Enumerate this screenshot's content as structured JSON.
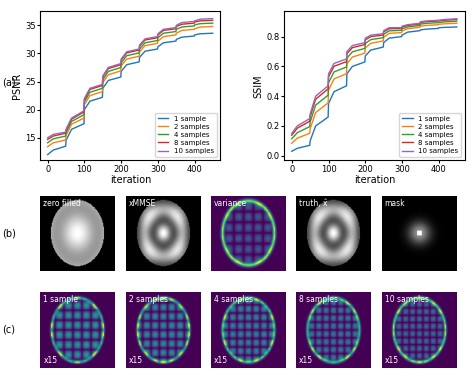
{
  "chart_data": [
    {
      "type": "line",
      "x_label": "iteration",
      "y_label": "PSNR",
      "x": [
        0,
        15,
        49,
        50,
        65,
        99,
        100,
        115,
        149,
        150,
        165,
        199,
        200,
        215,
        249,
        250,
        265,
        299,
        300,
        315,
        349,
        350,
        365,
        399,
        400,
        415,
        449
      ],
      "xlim": [
        -20,
        470
      ],
      "xticks": [
        0,
        100,
        200,
        300,
        400
      ],
      "ylim": [
        11,
        37.5
      ],
      "yticks": [
        15,
        20,
        25,
        30,
        35
      ],
      "legend": "lower right",
      "series": [
        {
          "name": "1 sample",
          "color": "#1f77b4",
          "values": [
            12.0,
            12.8,
            13.5,
            14.5,
            16.5,
            17.5,
            20.0,
            21.5,
            22.2,
            23.8,
            25.2,
            25.8,
            26.8,
            28.0,
            28.5,
            29.3,
            30.4,
            30.8,
            31.2,
            31.9,
            32.2,
            32.5,
            32.9,
            33.1,
            33.3,
            33.5,
            33.6
          ]
        },
        {
          "name": "2 samples",
          "color": "#ff7f0e",
          "values": [
            13.4,
            14.1,
            14.6,
            15.4,
            17.4,
            18.5,
            20.9,
            22.5,
            23.2,
            24.8,
            26.2,
            26.9,
            27.8,
            29.0,
            29.5,
            30.3,
            31.4,
            31.8,
            32.2,
            33.0,
            33.3,
            33.6,
            34.1,
            34.3,
            34.4,
            34.7,
            34.8
          ]
        },
        {
          "name": "4 samples",
          "color": "#2ca02c",
          "values": [
            14.1,
            14.8,
            15.3,
            15.9,
            17.9,
            19.1,
            21.4,
            23.1,
            23.8,
            25.3,
            26.8,
            27.5,
            28.3,
            29.6,
            30.1,
            30.8,
            31.9,
            32.3,
            32.8,
            33.6,
            33.9,
            34.3,
            34.7,
            34.9,
            35.1,
            35.3,
            35.4
          ]
        },
        {
          "name": "8 samples",
          "color": "#d62728",
          "values": [
            14.7,
            15.3,
            15.8,
            16.3,
            18.3,
            19.6,
            21.8,
            23.6,
            24.3,
            25.8,
            27.3,
            28.0,
            28.8,
            30.1,
            30.6,
            31.3,
            32.4,
            32.8,
            33.3,
            34.1,
            34.4,
            34.8,
            35.2,
            35.4,
            35.6,
            35.8,
            35.9
          ]
        },
        {
          "name": "10 samples",
          "color": "#9467bd",
          "values": [
            15.0,
            15.6,
            16.0,
            16.5,
            18.5,
            19.8,
            22.0,
            23.8,
            24.5,
            26.0,
            27.5,
            28.2,
            29.0,
            30.3,
            30.8,
            31.5,
            32.6,
            33.0,
            33.5,
            34.3,
            34.6,
            35.0,
            35.5,
            35.7,
            35.8,
            36.1,
            36.2
          ]
        }
      ]
    },
    {
      "type": "line",
      "x_label": "iteration",
      "y_label": "SSIM",
      "x": [
        0,
        15,
        49,
        50,
        65,
        99,
        100,
        115,
        149,
        150,
        165,
        199,
        200,
        215,
        249,
        250,
        265,
        299,
        300,
        315,
        349,
        350,
        365,
        399,
        400,
        415,
        449
      ],
      "xlim": [
        -20,
        470
      ],
      "xticks": [
        0,
        100,
        200,
        300,
        400
      ],
      "ylim": [
        -0.03,
        0.97
      ],
      "yticks": [
        {
          "value": 0,
          "label": "0.0"
        },
        0.2,
        0.4,
        0.6,
        0.8
      ],
      "legend": "lower right",
      "series": [
        {
          "name": "1 sample",
          "color": "#1f77b4",
          "values": [
            0.03,
            0.05,
            0.07,
            0.1,
            0.2,
            0.26,
            0.35,
            0.43,
            0.47,
            0.55,
            0.6,
            0.63,
            0.67,
            0.71,
            0.73,
            0.76,
            0.79,
            0.8,
            0.81,
            0.83,
            0.84,
            0.845,
            0.85,
            0.855,
            0.86,
            0.862,
            0.865
          ]
        },
        {
          "name": "2 samples",
          "color": "#ff7f0e",
          "values": [
            0.084,
            0.118,
            0.151,
            0.181,
            0.29,
            0.355,
            0.44,
            0.516,
            0.551,
            0.618,
            0.663,
            0.689,
            0.724,
            0.755,
            0.771,
            0.796,
            0.822,
            0.827,
            0.837,
            0.853,
            0.863,
            0.87,
            0.875,
            0.88,
            0.883,
            0.886,
            0.89
          ]
        },
        {
          "name": "4 samples",
          "color": "#2ca02c",
          "values": [
            0.114,
            0.155,
            0.196,
            0.226,
            0.34,
            0.407,
            0.49,
            0.563,
            0.596,
            0.655,
            0.698,
            0.721,
            0.754,
            0.78,
            0.793,
            0.816,
            0.839,
            0.842,
            0.852,
            0.865,
            0.875,
            0.884,
            0.889,
            0.894,
            0.895,
            0.899,
            0.904
          ]
        },
        {
          "name": "8 samples",
          "color": "#d62728",
          "values": [
            0.138,
            0.185,
            0.232,
            0.262,
            0.38,
            0.449,
            0.53,
            0.601,
            0.632,
            0.685,
            0.726,
            0.747,
            0.778,
            0.8,
            0.811,
            0.832,
            0.853,
            0.854,
            0.864,
            0.875,
            0.885,
            0.895,
            0.9,
            0.905,
            0.905,
            0.91,
            0.915
          ]
        },
        {
          "name": "10 samples",
          "color": "#9467bd",
          "values": [
            0.15,
            0.2,
            0.25,
            0.28,
            0.4,
            0.47,
            0.55,
            0.62,
            0.65,
            0.7,
            0.74,
            0.76,
            0.79,
            0.81,
            0.82,
            0.84,
            0.86,
            0.86,
            0.87,
            0.88,
            0.89,
            0.9,
            0.905,
            0.91,
            0.91,
            0.915,
            0.92
          ]
        }
      ]
    }
  ],
  "panel_labels": [
    "(a)",
    "(b)",
    "(c)"
  ],
  "row_b": {
    "labels": [
      "zero filled",
      "xMMSE",
      "variance",
      "truth, x̂",
      "mask"
    ]
  },
  "row_c": {
    "labels": [
      "1 sample",
      "2 samples",
      "4 samples",
      "8 samples",
      "10 samples"
    ],
    "scale": "x15"
  }
}
